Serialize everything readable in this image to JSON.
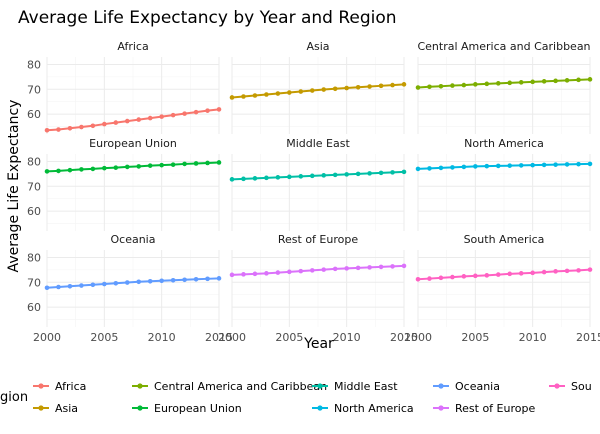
{
  "chart_data": {
    "type": "line",
    "title": "Average Life Expectancy by Year and Region",
    "xlabel": "Year",
    "ylabel": "Average Life Expectancy",
    "xlim": [
      2000,
      2015
    ],
    "ylim": [
      52,
      83
    ],
    "x_ticks": [
      2000,
      2005,
      2010,
      2015
    ],
    "y_ticks": [
      60,
      70,
      80
    ],
    "grid": true,
    "legend_title": "gion",
    "legend_position": "bottom",
    "x": [
      2000,
      2001,
      2002,
      2003,
      2004,
      2005,
      2006,
      2007,
      2008,
      2009,
      2010,
      2011,
      2012,
      2013,
      2014,
      2015
    ],
    "series": [
      {
        "name": "Africa",
        "color": "#F8766D",
        "values": [
          53.5,
          53.8,
          54.3,
          54.8,
          55.3,
          56.0,
          56.6,
          57.2,
          57.8,
          58.4,
          59.0,
          59.6,
          60.2,
          60.8,
          61.4,
          61.9
        ]
      },
      {
        "name": "Asia",
        "color": "#C49A00",
        "values": [
          66.7,
          67.1,
          67.5,
          67.9,
          68.3,
          68.7,
          69.1,
          69.5,
          69.9,
          70.2,
          70.5,
          70.8,
          71.1,
          71.4,
          71.7,
          72.0
        ]
      },
      {
        "name": "Central America and Caribbean",
        "color": "#7CAE00",
        "values": [
          70.7,
          71.0,
          71.2,
          71.5,
          71.7,
          72.0,
          72.2,
          72.4,
          72.6,
          72.8,
          73.0,
          73.2,
          73.4,
          73.6,
          73.8,
          74.0
        ]
      },
      {
        "name": "European Union",
        "color": "#00BA38",
        "values": [
          76.0,
          76.2,
          76.5,
          76.8,
          77.0,
          77.3,
          77.5,
          77.8,
          78.0,
          78.3,
          78.5,
          78.7,
          79.0,
          79.2,
          79.4,
          79.6
        ]
      },
      {
        "name": "Middle East",
        "color": "#00BFA6",
        "values": [
          72.8,
          73.0,
          73.2,
          73.4,
          73.6,
          73.8,
          74.0,
          74.2,
          74.4,
          74.6,
          74.8,
          75.0,
          75.2,
          75.4,
          75.6,
          75.8
        ]
      },
      {
        "name": "North America",
        "color": "#00B9E3",
        "values": [
          77.0,
          77.2,
          77.4,
          77.6,
          77.8,
          78.0,
          78.1,
          78.2,
          78.3,
          78.4,
          78.5,
          78.6,
          78.7,
          78.8,
          78.9,
          79.0
        ]
      },
      {
        "name": "Oceania",
        "color": "#619CFF",
        "values": [
          67.8,
          68.1,
          68.4,
          68.7,
          69.0,
          69.3,
          69.6,
          69.9,
          70.2,
          70.4,
          70.6,
          70.8,
          71.0,
          71.2,
          71.4,
          71.6
        ]
      },
      {
        "name": "Rest of Europe",
        "color": "#DB72FB",
        "values": [
          73.0,
          73.2,
          73.4,
          73.6,
          73.9,
          74.2,
          74.5,
          74.8,
          75.1,
          75.4,
          75.6,
          75.8,
          76.0,
          76.2,
          76.4,
          76.6
        ]
      },
      {
        "name": "South America",
        "color": "#FF61C3",
        "legend_label": "Sou",
        "values": [
          71.2,
          71.5,
          71.8,
          72.1,
          72.4,
          72.6,
          72.8,
          73.1,
          73.4,
          73.6,
          73.8,
          74.1,
          74.4,
          74.6,
          74.8,
          75.1
        ]
      }
    ]
  }
}
